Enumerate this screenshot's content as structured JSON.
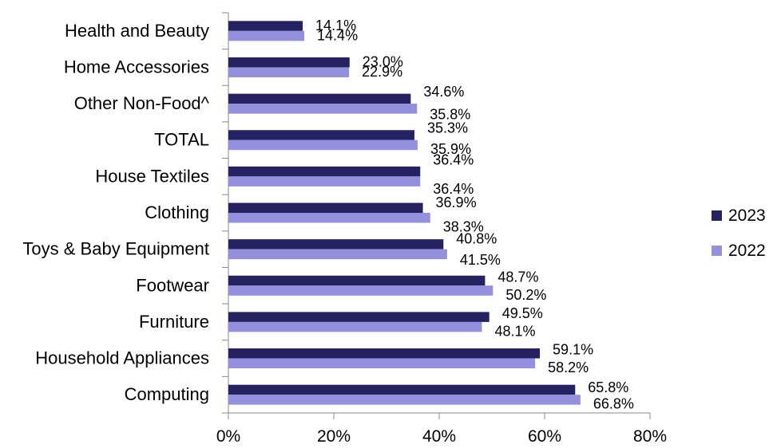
{
  "chart_data": {
    "type": "bar",
    "orientation": "horizontal",
    "categories": [
      "Health and Beauty",
      "Home Accessories",
      "Other Non-Food^",
      "TOTAL",
      "House Textiles",
      "Clothing",
      "Toys & Baby Equipment",
      "Footwear",
      "Furniture",
      "Household Appliances",
      "Computing"
    ],
    "series": [
      {
        "name": "2023",
        "color": "#262262",
        "values": [
          14.1,
          23.0,
          34.6,
          35.3,
          36.4,
          36.9,
          40.8,
          48.7,
          49.5,
          59.1,
          65.8
        ],
        "labels": [
          "14.1%",
          "23.0%",
          "34.6%",
          "35.3%",
          "36.4%",
          "36.9%",
          "40.8%",
          "48.7%",
          "49.5%",
          "59.1%",
          "65.8%"
        ]
      },
      {
        "name": "2022",
        "color": "#9490dd",
        "values": [
          14.4,
          22.9,
          35.8,
          35.9,
          36.4,
          38.3,
          41.5,
          50.2,
          48.1,
          58.2,
          66.8
        ],
        "labels": [
          "14.4%",
          "22.9%",
          "35.8%",
          "35.9%",
          "36.4%",
          "38.3%",
          "41.5%",
          "50.2%",
          "48.1%",
          "58.2%",
          "66.8%"
        ]
      }
    ],
    "xlim": [
      0,
      80
    ],
    "xticks": [
      0,
      20,
      40,
      60,
      80
    ],
    "xtick_labels": [
      "0%",
      "20%",
      "40%",
      "60%",
      "80%"
    ],
    "grid": false,
    "legend_position": "right"
  }
}
